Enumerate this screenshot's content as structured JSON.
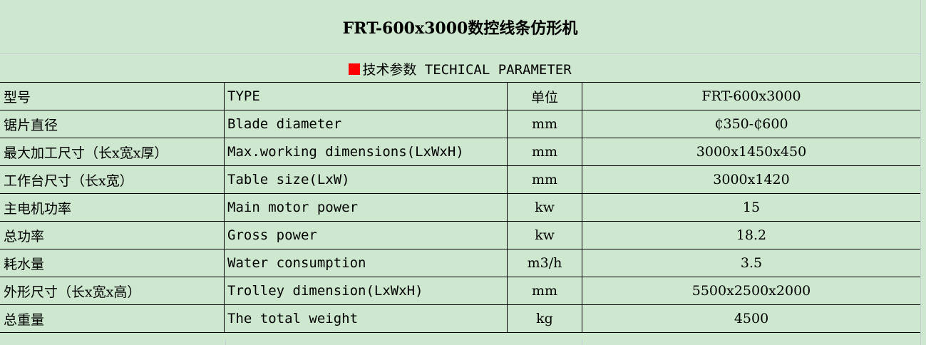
{
  "title": "FRT-600x3000数控线条仿形机",
  "subtitle": "技术参数 TECHICAL PARAMETER",
  "accent_color": "#ff0000",
  "rows": [
    {
      "cn": "型号",
      "en": "TYPE",
      "unit": "单位",
      "value": "FRT-600x3000"
    },
    {
      "cn": "锯片直径",
      "en": "Blade diameter",
      "unit": "mm",
      "value": "₵350-₵600"
    },
    {
      "cn": "最大加工尺寸（长x宽x厚）",
      "en": "Max.working dimensions(LxWxH)",
      "unit": "mm",
      "value": "3000x1450x450"
    },
    {
      "cn": "工作台尺寸（长x宽）",
      "en": "Table size(LxW)",
      "unit": "mm",
      "value": "3000x1420"
    },
    {
      "cn": "主电机功率",
      "en": "Main motor power",
      "unit": "kw",
      "value": "15"
    },
    {
      "cn": "总功率",
      "en": "Gross power",
      "unit": "kw",
      "value": "18.2"
    },
    {
      "cn": "耗水量",
      "en": "Water consumption",
      "unit": "m3/h",
      "value": "3.5"
    },
    {
      "cn": "外形尺寸（长x宽x高）",
      "en": "Trolley dimension(LxWxH)",
      "unit": "mm",
      "value": "5500x2500x2000"
    },
    {
      "cn": "总重量",
      "en": "The total weight",
      "unit": "kg",
      "value": "4500"
    }
  ]
}
